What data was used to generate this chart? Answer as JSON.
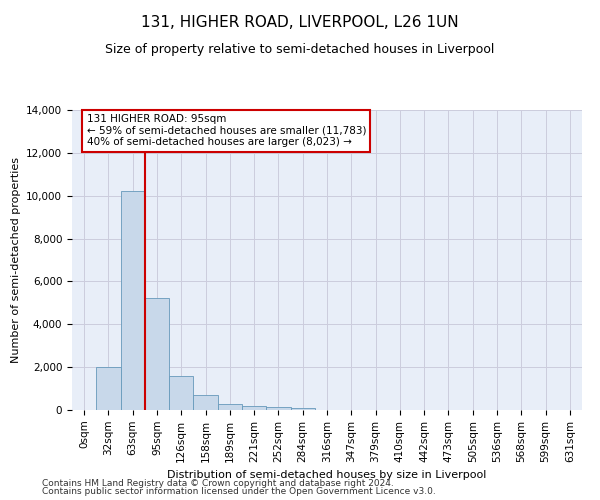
{
  "title": "131, HIGHER ROAD, LIVERPOOL, L26 1UN",
  "subtitle": "Size of property relative to semi-detached houses in Liverpool",
  "xlabel": "Distribution of semi-detached houses by size in Liverpool",
  "ylabel": "Number of semi-detached properties",
  "footer_line1": "Contains HM Land Registry data © Crown copyright and database right 2024.",
  "footer_line2": "Contains public sector information licensed under the Open Government Licence v3.0.",
  "bar_labels": [
    "0sqm",
    "32sqm",
    "63sqm",
    "95sqm",
    "126sqm",
    "158sqm",
    "189sqm",
    "221sqm",
    "252sqm",
    "284sqm",
    "316sqm",
    "347sqm",
    "379sqm",
    "410sqm",
    "442sqm",
    "473sqm",
    "505sqm",
    "536sqm",
    "568sqm",
    "599sqm",
    "631sqm"
  ],
  "bar_values": [
    0,
    2000,
    10200,
    5250,
    1600,
    700,
    280,
    180,
    150,
    100,
    0,
    0,
    0,
    0,
    0,
    0,
    0,
    0,
    0,
    0,
    0
  ],
  "bar_color": "#c8d8ea",
  "bar_edge_color": "#6699bb",
  "vline_color": "#cc0000",
  "vline_bin": 3,
  "annotation_line1": "131 HIGHER ROAD: 95sqm",
  "annotation_line2": "← 59% of semi-detached houses are smaller (11,783)",
  "annotation_line3": "40% of semi-detached houses are larger (8,023) →",
  "annotation_box_color": "#ffffff",
  "annotation_box_edge_color": "#cc0000",
  "ylim": [
    0,
    14000
  ],
  "yticks": [
    0,
    2000,
    4000,
    6000,
    8000,
    10000,
    12000,
    14000
  ],
  "grid_color": "#ccccdd",
  "bg_color": "#e8eef8",
  "title_fontsize": 11,
  "subtitle_fontsize": 9,
  "axis_label_fontsize": 8,
  "tick_fontsize": 7.5,
  "footer_fontsize": 6.5
}
